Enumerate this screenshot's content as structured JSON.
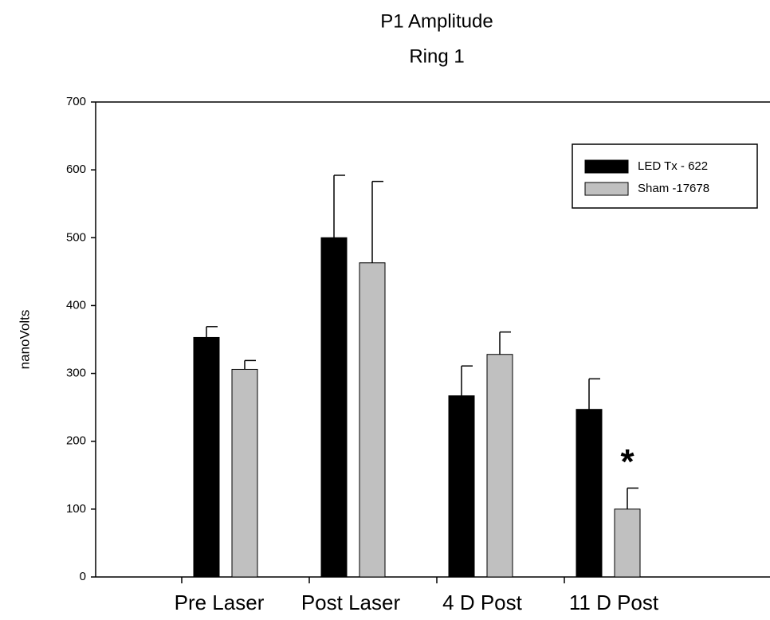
{
  "chart_data": {
    "type": "bar",
    "title": "P1 Amplitude",
    "subtitle": "Ring 1",
    "y_label": "nanoVolts",
    "categories": [
      "Pre Laser",
      "Post Laser",
      "4 D Post",
      "11 D Post"
    ],
    "series": [
      {
        "name": "LED Tx - 622",
        "color": "#000000",
        "values": [
          353,
          500,
          267,
          247
        ],
        "errors": [
          16,
          92,
          44,
          45
        ]
      },
      {
        "name": "Sham -17678",
        "color": "#c0c0c0",
        "values": [
          306,
          463,
          328,
          100
        ],
        "errors": [
          13,
          120,
          33,
          31
        ]
      }
    ],
    "annotation": "*",
    "ylim": [
      0,
      700
    ],
    "yticks": [
      0,
      100,
      200,
      300,
      400,
      500,
      600,
      700
    ],
    "legend": "top-right"
  }
}
